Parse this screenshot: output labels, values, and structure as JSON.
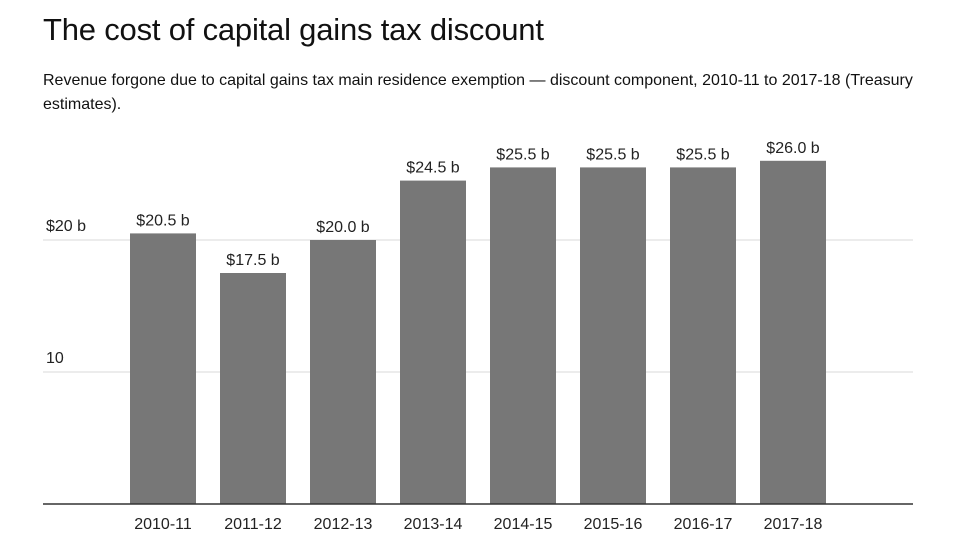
{
  "chart_data": {
    "type": "bar",
    "title": "The cost of capital gains tax discount",
    "subtitle": "Revenue forgone due to capital gains tax main residence exemption — discount component, 2010-11 to 2017-18 (Treasury estimates).",
    "categories": [
      "2010-11",
      "2011-12",
      "2012-13",
      "2013-14",
      "2014-15",
      "2015-16",
      "2016-17",
      "2017-18"
    ],
    "values": [
      20.5,
      17.5,
      20.0,
      24.5,
      25.5,
      25.5,
      25.5,
      26.0
    ],
    "data_labels": [
      "$20.5 b",
      "$17.5 b",
      "$20.0 b",
      "$24.5 b",
      "$25.5 b",
      "$25.5 b",
      "$25.5 b",
      "$26.0 b"
    ],
    "ylim": [
      0,
      27
    ],
    "yticks": [
      {
        "value": 10,
        "label": "10"
      },
      {
        "value": 20,
        "label": "$20 b"
      }
    ],
    "grid": true,
    "bar_color": "#777777",
    "xlabel": "",
    "ylabel": ""
  }
}
